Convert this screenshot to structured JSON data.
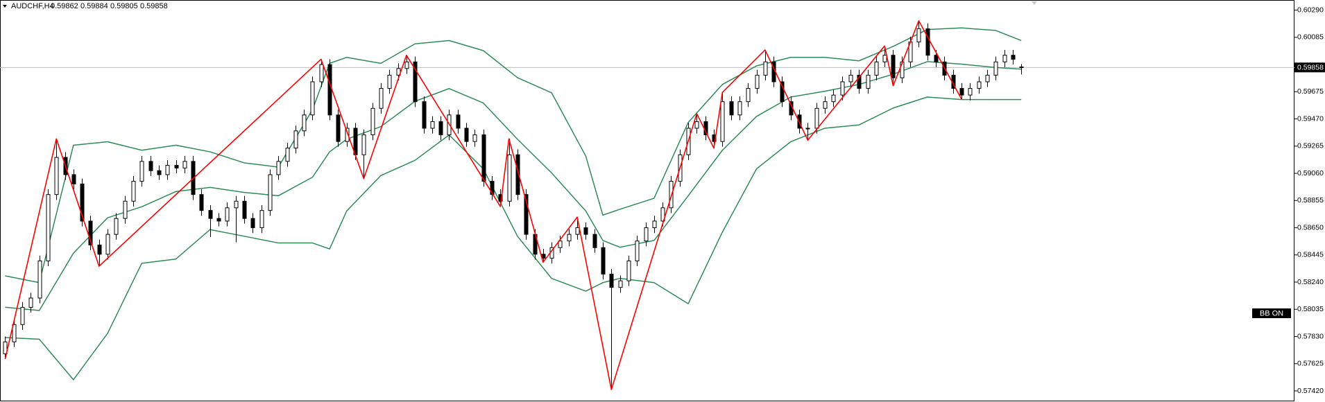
{
  "chart_data": {
    "type": "candlestick",
    "symbol": "AUDCHF,H4",
    "indicator_label": "BB ON",
    "up_color": "#ffffff",
    "down_color": "#000000",
    "xlim": [
      -0.6,
      151
    ],
    "ylim": [
      0.57352,
      0.60356
    ],
    "yticks": [
      {
        "value": 0.6029,
        "label": "0.60290"
      },
      {
        "value": 0.60085,
        "label": "0.60085"
      },
      {
        "value": 0.59675,
        "label": "0.59675"
      },
      {
        "value": 0.5947,
        "label": "0.59470"
      },
      {
        "value": 0.59265,
        "label": "0.59265"
      },
      {
        "value": 0.5906,
        "label": "0.59060"
      },
      {
        "value": 0.58855,
        "label": "0.58855"
      },
      {
        "value": 0.5865,
        "label": "0.58650"
      },
      {
        "value": 0.58445,
        "label": "0.58445"
      },
      {
        "value": 0.5824,
        "label": "0.58240"
      },
      {
        "value": 0.58035,
        "label": "0.58035"
      },
      {
        "value": 0.5783,
        "label": "0.57830"
      },
      {
        "value": 0.57625,
        "label": "0.57625"
      },
      {
        "value": 0.5742,
        "label": "0.57420"
      }
    ],
    "candles": [
      [
        0.577,
        0.5783,
        0.5766,
        0.5779
      ],
      [
        0.5779,
        0.5796,
        0.5775,
        0.5792
      ],
      [
        0.5792,
        0.5809,
        0.5788,
        0.5805
      ],
      [
        0.5805,
        0.5816,
        0.5801,
        0.5812
      ],
      [
        0.5812,
        0.5844,
        0.5808,
        0.584
      ],
      [
        0.584,
        0.5894,
        0.5836,
        0.589
      ],
      [
        0.589,
        0.5932,
        0.5886,
        0.5918
      ],
      [
        0.5918,
        0.5922,
        0.5901,
        0.5905
      ],
      [
        0.5905,
        0.5909,
        0.5894,
        0.5898
      ],
      [
        0.5898,
        0.5902,
        0.5866,
        0.587
      ],
      [
        0.587,
        0.5874,
        0.5848,
        0.5852
      ],
      [
        0.5852,
        0.5856,
        0.5836,
        0.5845
      ],
      [
        0.5845,
        0.5864,
        0.5841,
        0.586
      ],
      [
        0.586,
        0.5876,
        0.5856,
        0.5872
      ],
      [
        0.5872,
        0.5889,
        0.5868,
        0.5885
      ],
      [
        0.5885,
        0.5904,
        0.5881,
        0.59
      ],
      [
        0.59,
        0.5919,
        0.5896,
        0.5915
      ],
      [
        0.5915,
        0.5919,
        0.5904,
        0.5908
      ],
      [
        0.5908,
        0.5912,
        0.5901,
        0.5905
      ],
      [
        0.5905,
        0.5916,
        0.5901,
        0.5912
      ],
      [
        0.5912,
        0.5916,
        0.5906,
        0.591
      ],
      [
        0.591,
        0.5919,
        0.5906,
        0.5915
      ],
      [
        0.5915,
        0.5919,
        0.5886,
        0.589
      ],
      [
        0.589,
        0.5894,
        0.5874,
        0.5878
      ],
      [
        0.5878,
        0.5882,
        0.5858,
        0.5872
      ],
      [
        0.5872,
        0.5876,
        0.5866,
        0.587
      ],
      [
        0.587,
        0.5884,
        0.5866,
        0.588
      ],
      [
        0.588,
        0.5889,
        0.5854,
        0.5885
      ],
      [
        0.5885,
        0.5889,
        0.5868,
        0.5872
      ],
      [
        0.5872,
        0.5876,
        0.5861,
        0.5865
      ],
      [
        0.5865,
        0.5882,
        0.5861,
        0.5878
      ],
      [
        0.5878,
        0.5909,
        0.5874,
        0.5905
      ],
      [
        0.5905,
        0.5919,
        0.5901,
        0.5915
      ],
      [
        0.5915,
        0.5929,
        0.5911,
        0.5925
      ],
      [
        0.5925,
        0.5942,
        0.5921,
        0.5938
      ],
      [
        0.5938,
        0.5954,
        0.5934,
        0.595
      ],
      [
        0.595,
        0.5979,
        0.5946,
        0.5975
      ],
      [
        0.5975,
        0.5992,
        0.5971,
        0.5988
      ],
      [
        0.5988,
        0.5992,
        0.5946,
        0.595
      ],
      [
        0.595,
        0.5954,
        0.5926,
        0.593
      ],
      [
        0.593,
        0.5944,
        0.5926,
        0.594
      ],
      [
        0.594,
        0.5944,
        0.5916,
        0.592
      ],
      [
        0.592,
        0.5939,
        0.5902,
        0.5935
      ],
      [
        0.5935,
        0.5959,
        0.5931,
        0.5955
      ],
      [
        0.5955,
        0.5974,
        0.5951,
        0.597
      ],
      [
        0.597,
        0.5984,
        0.5966,
        0.598
      ],
      [
        0.598,
        0.5989,
        0.5976,
        0.5985
      ],
      [
        0.5985,
        0.5995,
        0.5981,
        0.599
      ],
      [
        0.599,
        0.5994,
        0.5956,
        0.596
      ],
      [
        0.596,
        0.5964,
        0.5936,
        0.594
      ],
      [
        0.594,
        0.5949,
        0.5936,
        0.5945
      ],
      [
        0.5945,
        0.5949,
        0.5931,
        0.5935
      ],
      [
        0.5935,
        0.5954,
        0.5931,
        0.595
      ],
      [
        0.595,
        0.5954,
        0.5936,
        0.594
      ],
      [
        0.594,
        0.5944,
        0.5926,
        0.593
      ],
      [
        0.593,
        0.5939,
        0.5926,
        0.5935
      ],
      [
        0.5935,
        0.5939,
        0.5896,
        0.59
      ],
      [
        0.59,
        0.5904,
        0.5886,
        0.589
      ],
      [
        0.589,
        0.5894,
        0.5881,
        0.5885
      ],
      [
        0.5885,
        0.5932,
        0.5881,
        0.592
      ],
      [
        0.592,
        0.5924,
        0.5886,
        0.589
      ],
      [
        0.589,
        0.5894,
        0.5856,
        0.586
      ],
      [
        0.586,
        0.5864,
        0.5841,
        0.5845
      ],
      [
        0.5845,
        0.5849,
        0.5839,
        0.5842
      ],
      [
        0.5842,
        0.5854,
        0.5838,
        0.585
      ],
      [
        0.585,
        0.5859,
        0.5846,
        0.5855
      ],
      [
        0.5855,
        0.5864,
        0.5851,
        0.586
      ],
      [
        0.586,
        0.5873,
        0.5856,
        0.5865
      ],
      [
        0.5865,
        0.5869,
        0.5856,
        0.586
      ],
      [
        0.586,
        0.5864,
        0.5846,
        0.585
      ],
      [
        0.585,
        0.5854,
        0.5826,
        0.583
      ],
      [
        0.583,
        0.5834,
        0.5743,
        0.582
      ],
      [
        0.582,
        0.5829,
        0.5816,
        0.5825
      ],
      [
        0.5825,
        0.5844,
        0.5821,
        0.584
      ],
      [
        0.584,
        0.5859,
        0.5836,
        0.5855
      ],
      [
        0.5855,
        0.5869,
        0.5851,
        0.5865
      ],
      [
        0.5865,
        0.5874,
        0.5861,
        0.587
      ],
      [
        0.587,
        0.5884,
        0.5866,
        0.588
      ],
      [
        0.588,
        0.5904,
        0.5876,
        0.59
      ],
      [
        0.59,
        0.5924,
        0.5896,
        0.592
      ],
      [
        0.592,
        0.5944,
        0.5916,
        0.594
      ],
      [
        0.594,
        0.5951,
        0.5936,
        0.5945
      ],
      [
        0.5945,
        0.5949,
        0.5931,
        0.5935
      ],
      [
        0.5935,
        0.5939,
        0.5925,
        0.593
      ],
      [
        0.593,
        0.5967,
        0.5926,
        0.596
      ],
      [
        0.596,
        0.5964,
        0.5946,
        0.595
      ],
      [
        0.595,
        0.5964,
        0.5946,
        0.596
      ],
      [
        0.596,
        0.5974,
        0.5956,
        0.597
      ],
      [
        0.597,
        0.5984,
        0.5966,
        0.598
      ],
      [
        0.598,
        0.5999,
        0.5976,
        0.599
      ],
      [
        0.599,
        0.5994,
        0.5971,
        0.5975
      ],
      [
        0.5975,
        0.5979,
        0.5956,
        0.596
      ],
      [
        0.596,
        0.5964,
        0.5946,
        0.595
      ],
      [
        0.595,
        0.5954,
        0.5936,
        0.594
      ],
      [
        0.594,
        0.5944,
        0.5931,
        0.594
      ],
      [
        0.594,
        0.5959,
        0.5936,
        0.5955
      ],
      [
        0.5955,
        0.5964,
        0.5951,
        0.596
      ],
      [
        0.596,
        0.5969,
        0.5956,
        0.5965
      ],
      [
        0.5965,
        0.5979,
        0.5961,
        0.5975
      ],
      [
        0.5975,
        0.5984,
        0.5971,
        0.598
      ],
      [
        0.598,
        0.5984,
        0.5966,
        0.597
      ],
      [
        0.597,
        0.5984,
        0.5966,
        0.598
      ],
      [
        0.598,
        0.5994,
        0.5976,
        0.599
      ],
      [
        0.599,
        0.6002,
        0.5986,
        0.5995
      ],
      [
        0.5995,
        0.5999,
        0.5972,
        0.5978
      ],
      [
        0.5978,
        0.5994,
        0.5974,
        0.599
      ],
      [
        0.599,
        0.6009,
        0.5986,
        0.6005
      ],
      [
        0.6005,
        0.6021,
        0.6001,
        0.6015
      ],
      [
        0.6015,
        0.6019,
        0.5991,
        0.5995
      ],
      [
        0.5995,
        0.5999,
        0.5986,
        0.599
      ],
      [
        0.599,
        0.5994,
        0.5976,
        0.598
      ],
      [
        0.598,
        0.5984,
        0.5966,
        0.597
      ],
      [
        0.597,
        0.5974,
        0.5962,
        0.5965
      ],
      [
        0.5965,
        0.5974,
        0.5961,
        0.597
      ],
      [
        0.597,
        0.5979,
        0.5966,
        0.5975
      ],
      [
        0.5975,
        0.5984,
        0.5971,
        0.598
      ],
      [
        0.598,
        0.5994,
        0.5976,
        0.599
      ],
      [
        0.599,
        0.5999,
        0.5986,
        0.5995
      ],
      [
        0.5995,
        0.5999,
        0.5988,
        0.5992
      ],
      [
        0.59862,
        0.59884,
        0.59805,
        0.59858
      ]
    ],
    "bands": {
      "color": "#2e8b57",
      "x": [
        0,
        4,
        8,
        12,
        16,
        20,
        24,
        28,
        32,
        36,
        38,
        40,
        44,
        48,
        52,
        56,
        60,
        64,
        68,
        70,
        72,
        76,
        80,
        84,
        88,
        92,
        96,
        100,
        104,
        108,
        112,
        116,
        119
      ],
      "upper": [
        0.58287,
        0.58236,
        0.59272,
        0.59298,
        0.59234,
        0.59272,
        0.59222,
        0.59139,
        0.59107,
        0.5954,
        0.59889,
        0.59934,
        0.59889,
        0.60036,
        0.60061,
        0.59985,
        0.59781,
        0.59667,
        0.5919,
        0.58745,
        0.58789,
        0.58872,
        0.59444,
        0.5973,
        0.5987,
        0.59934,
        0.59934,
        0.59908,
        0.60017,
        0.60144,
        0.60156,
        0.60137,
        0.60061
      ],
      "middle": [
        0.58051,
        0.58026,
        0.58458,
        0.58725,
        0.58808,
        0.58923,
        0.58954,
        0.58916,
        0.58891,
        0.59031,
        0.59222,
        0.59317,
        0.59412,
        0.59603,
        0.59699,
        0.5959,
        0.59317,
        0.59063,
        0.58776,
        0.58554,
        0.58503,
        0.58554,
        0.58891,
        0.59234,
        0.59489,
        0.59635,
        0.59679,
        0.5973,
        0.59807,
        0.59902,
        0.59883,
        0.59858,
        0.59845
      ],
      "lower": [
        0.57822,
        0.5781,
        0.57504,
        0.57854,
        0.58382,
        0.58414,
        0.58636,
        0.58586,
        0.58535,
        0.58535,
        0.5849,
        0.58776,
        0.59043,
        0.59158,
        0.59349,
        0.59094,
        0.58586,
        0.58268,
        0.58172,
        0.58236,
        0.58268,
        0.58236,
        0.58077,
        0.58617,
        0.59094,
        0.59298,
        0.594,
        0.59425,
        0.59552,
        0.59635,
        0.59616,
        0.59616,
        0.59616
      ]
    },
    "zigzag": {
      "color": "#ff0000",
      "x": [
        0,
        6,
        11,
        37,
        42,
        47,
        58,
        59,
        63,
        67,
        71,
        81,
        83,
        84,
        89,
        94,
        103,
        104,
        107,
        112
      ],
      "values": [
        0.5766,
        0.5932,
        0.5836,
        0.5992,
        0.5902,
        0.5995,
        0.5881,
        0.5932,
        0.5839,
        0.5873,
        0.5743,
        0.5951,
        0.5925,
        0.5967,
        0.5999,
        0.5931,
        0.6002,
        0.5972,
        0.6021,
        0.5962
      ]
    }
  }
}
